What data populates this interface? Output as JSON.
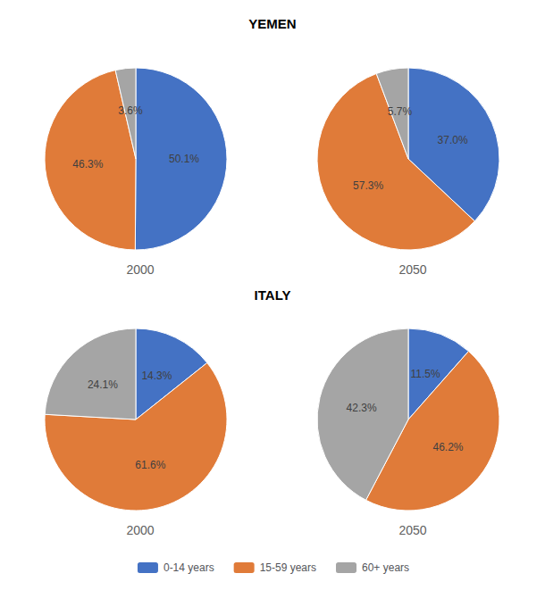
{
  "chart_data": [
    {
      "type": "pie",
      "title": "YEMEN",
      "subtitle": "2000",
      "categories": [
        "0-14 years",
        "15-59 years",
        "60+ years"
      ],
      "values": [
        50.1,
        46.3,
        3.6
      ],
      "value_labels": [
        "50.1%",
        "46.3%",
        "3.6%"
      ],
      "colors": [
        "#4472C4",
        "#E07B39",
        "#A5A5A5"
      ],
      "data_labels": true,
      "legend": "bottom"
    },
    {
      "type": "pie",
      "title": "YEMEN",
      "subtitle": "2050",
      "categories": [
        "0-14 years",
        "15-59 years",
        "60+ years"
      ],
      "values": [
        37.0,
        57.3,
        5.7
      ],
      "value_labels": [
        "37.0%",
        "57.3%",
        "5.7%"
      ],
      "colors": [
        "#4472C4",
        "#E07B39",
        "#A5A5A5"
      ],
      "data_labels": true,
      "legend": "bottom"
    },
    {
      "type": "pie",
      "title": "ITALY",
      "subtitle": "2000",
      "categories": [
        "0-14 years",
        "15-59 years",
        "60+ years"
      ],
      "values": [
        14.3,
        61.6,
        24.1
      ],
      "value_labels": [
        "14.3%",
        "61.6%",
        "24.1%"
      ],
      "colors": [
        "#4472C4",
        "#E07B39",
        "#A5A5A5"
      ],
      "data_labels": true,
      "legend": "bottom"
    },
    {
      "type": "pie",
      "title": "ITALY",
      "subtitle": "2050",
      "categories": [
        "0-14 years",
        "15-59 years",
        "60+ years"
      ],
      "values": [
        11.5,
        46.2,
        42.3
      ],
      "value_labels": [
        "11.5%",
        "46.2%",
        "42.3%"
      ],
      "colors": [
        "#4472C4",
        "#E07B39",
        "#A5A5A5"
      ],
      "data_labels": true,
      "legend": "bottom"
    }
  ]
}
